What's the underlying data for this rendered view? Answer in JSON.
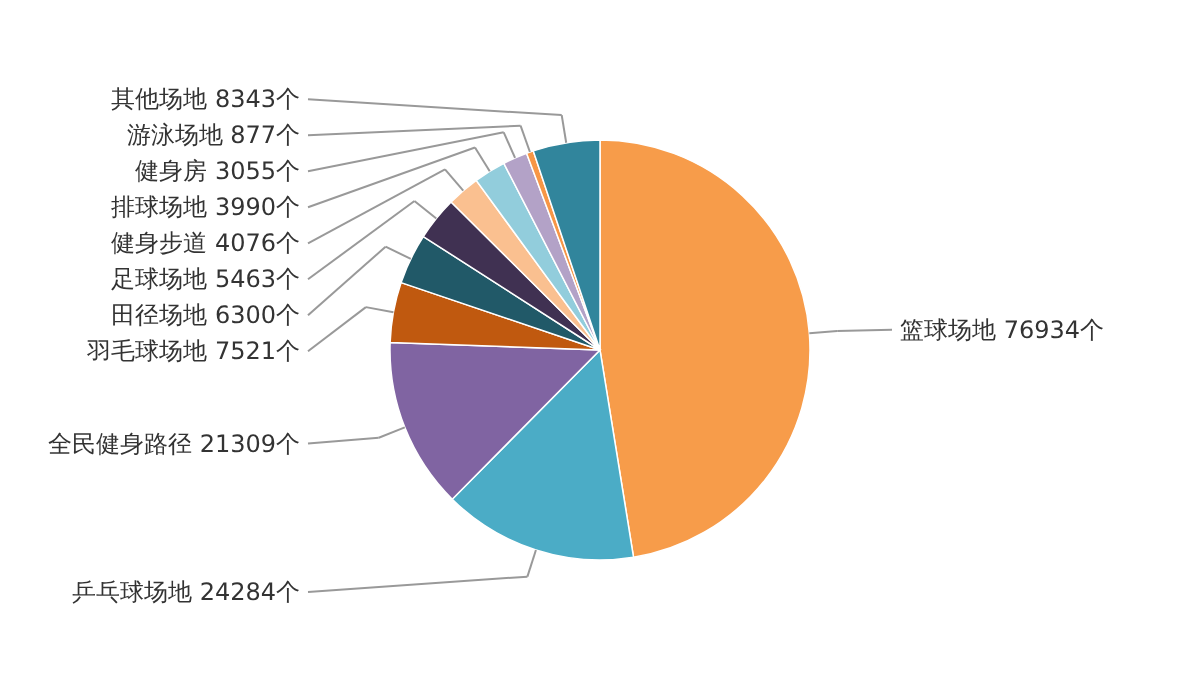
{
  "chart_data": {
    "type": "pie",
    "categories": [
      "篮球场地",
      "乒乓球场地",
      "全民健身路径",
      "羽毛球场地",
      "田径场地",
      "足球场地",
      "健身步道",
      "排球场地",
      "健身房",
      "游泳场地",
      "其他场地"
    ],
    "values": [
      76934,
      24284,
      21309,
      7521,
      6300,
      5463,
      4076,
      3990,
      3055,
      877,
      8343
    ],
    "value_labels": [
      "76934个",
      "24284个",
      "21309个",
      "7521个",
      "6300个",
      "5463个",
      "4076个",
      "3990个",
      "3055个",
      "877个",
      "8343个"
    ],
    "colors": [
      "#f79c4a",
      "#4bacc6",
      "#8064a2",
      "#c0590f",
      "#215968",
      "#403152",
      "#fac090",
      "#92cddc",
      "#b3a2c7",
      "#f79646",
      "#31859c"
    ]
  }
}
